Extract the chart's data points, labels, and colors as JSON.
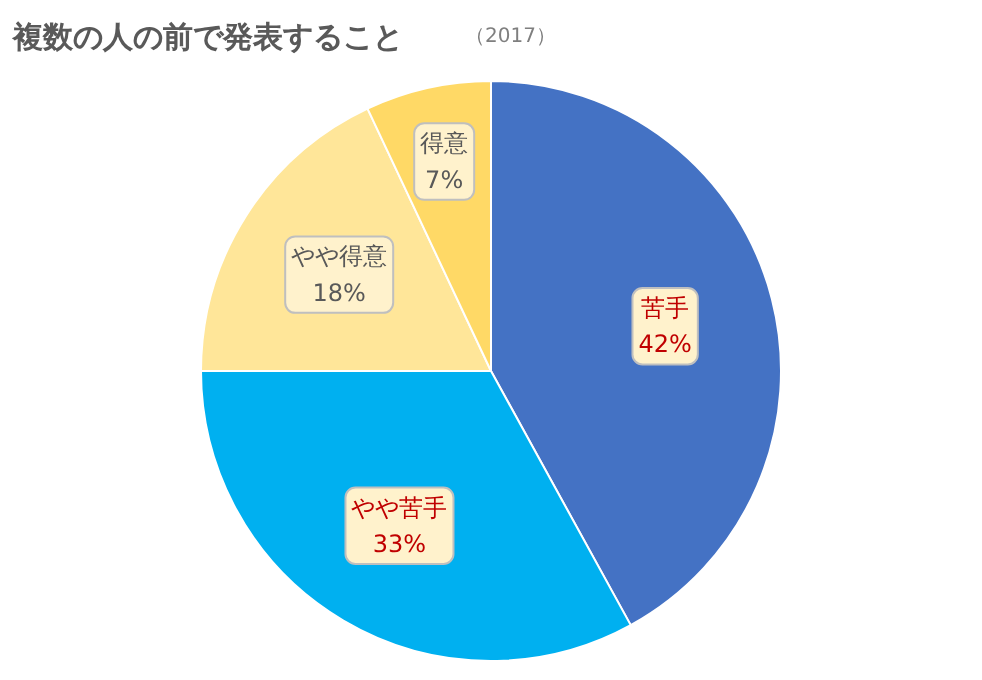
{
  "chart_data": {
    "type": "pie",
    "title": "複数の人の前で発表すること",
    "annotations": [
      "（2017）"
    ],
    "categories": [
      "苦手",
      "やや苦手",
      "やや得意",
      "得意"
    ],
    "values": [
      42,
      33,
      18,
      7
    ],
    "colors": [
      "#4472c4",
      "#00b0f0",
      "#ffe699",
      "#ffd966"
    ],
    "value_labels": [
      "42%",
      "33%",
      "18%",
      "7%"
    ],
    "data_labels": true
  }
}
